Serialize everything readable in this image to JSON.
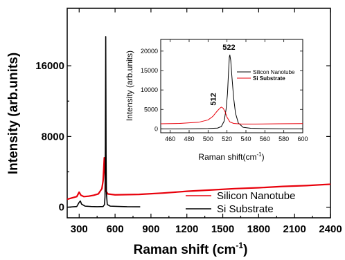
{
  "chart_data": [
    {
      "type": "line",
      "xlabel": "Raman shift (cm",
      "xlabel_sup": "-1",
      "xlabel_tail": ")",
      "ylabel": "Intensity (arb.units)",
      "xlim": [
        200,
        2400
      ],
      "ylim": [
        -1200,
        22500
      ],
      "xticks": [
        300,
        600,
        900,
        1200,
        1500,
        1800,
        2100,
        2400
      ],
      "yticks": [
        0,
        8000,
        16000
      ],
      "legend_position": "bottom-right",
      "series": [
        {
          "name": "Silicon Nanotube",
          "color": "#e8000b",
          "points": [
            [
              200,
              900
            ],
            [
              240,
              1050
            ],
            [
              280,
              1200
            ],
            [
              300,
              1700
            ],
            [
              315,
              1350
            ],
            [
              340,
              1200
            ],
            [
              380,
              1250
            ],
            [
              420,
              1350
            ],
            [
              460,
              1500
            ],
            [
              490,
              2100
            ],
            [
              500,
              3000
            ],
            [
              505,
              4200
            ],
            [
              510,
              5600
            ],
            [
              513,
              5500
            ],
            [
              518,
              3200
            ],
            [
              525,
              1800
            ],
            [
              540,
              1500
            ],
            [
              600,
              1400
            ],
            [
              800,
              1450
            ],
            [
              1000,
              1600
            ],
            [
              1200,
              1800
            ],
            [
              1400,
              1950
            ],
            [
              1600,
              2100
            ],
            [
              1800,
              2200
            ],
            [
              2000,
              2350
            ],
            [
              2200,
              2450
            ],
            [
              2400,
              2600
            ]
          ]
        },
        {
          "name": "Si Substrate",
          "color": "#000000",
          "points": [
            [
              200,
              0
            ],
            [
              280,
              80
            ],
            [
              300,
              550
            ],
            [
              310,
              700
            ],
            [
              320,
              350
            ],
            [
              350,
              120
            ],
            [
              400,
              80
            ],
            [
              450,
              60
            ],
            [
              500,
              80
            ],
            [
              512,
              300
            ],
            [
              516,
              1200
            ],
            [
              519,
              7000
            ],
            [
              521,
              15000
            ],
            [
              522,
              19300
            ],
            [
              523,
              15000
            ],
            [
              525,
              6000
            ],
            [
              528,
              1500
            ],
            [
              535,
              300
            ],
            [
              560,
              120
            ],
            [
              650,
              80
            ],
            [
              700,
              60
            ],
            [
              810,
              50
            ]
          ]
        }
      ]
    },
    {
      "type": "line",
      "xlabel": "Raman shift(cm",
      "xlabel_sup": "-1",
      "xlabel_tail": ")",
      "ylabel": "Intensity (arb.units)",
      "xlim": [
        450,
        600
      ],
      "ylim": [
        -1000,
        23000
      ],
      "xticks": [
        460,
        480,
        500,
        520,
        540,
        560,
        580,
        600
      ],
      "yticks": [
        0,
        5000,
        10000,
        15000,
        20000
      ],
      "legend_position": "top-right",
      "annotations": [
        {
          "text": "522",
          "x": 522,
          "y": 20300
        },
        {
          "text": "512",
          "x": 511,
          "y": 6000
        }
      ],
      "series": [
        {
          "name": "Silicon Nanotube",
          "color": "#000000",
          "points": [
            [
              450,
              0
            ],
            [
              480,
              20
            ],
            [
              500,
              80
            ],
            [
              510,
              200
            ],
            [
              514,
              600
            ],
            [
              517,
              2000
            ],
            [
              519,
              5000
            ],
            [
              520.5,
              9000
            ],
            [
              521.5,
              14000
            ],
            [
              522.5,
              18500
            ],
            [
              523,
              19000
            ],
            [
              524,
              17500
            ],
            [
              525,
              14000
            ],
            [
              527,
              8000
            ],
            [
              529,
              4000
            ],
            [
              532,
              1500
            ],
            [
              537,
              400
            ],
            [
              545,
              150
            ],
            [
              560,
              60
            ],
            [
              580,
              30
            ],
            [
              600,
              20
            ]
          ]
        },
        {
          "name": "Si Substrate",
          "color": "#e8000b",
          "points": [
            [
              450,
              1300
            ],
            [
              470,
              1400
            ],
            [
              490,
              1700
            ],
            [
              500,
              2300
            ],
            [
              505,
              3200
            ],
            [
              509,
              4400
            ],
            [
              512,
              5200
            ],
            [
              514,
              5600
            ],
            [
              516,
              5300
            ],
            [
              518,
              4400
            ],
            [
              520,
              3000
            ],
            [
              523,
              1800
            ],
            [
              527,
              1400
            ],
            [
              535,
              1250
            ],
            [
              550,
              1250
            ],
            [
              575,
              1300
            ],
            [
              600,
              1350
            ]
          ]
        }
      ]
    }
  ]
}
